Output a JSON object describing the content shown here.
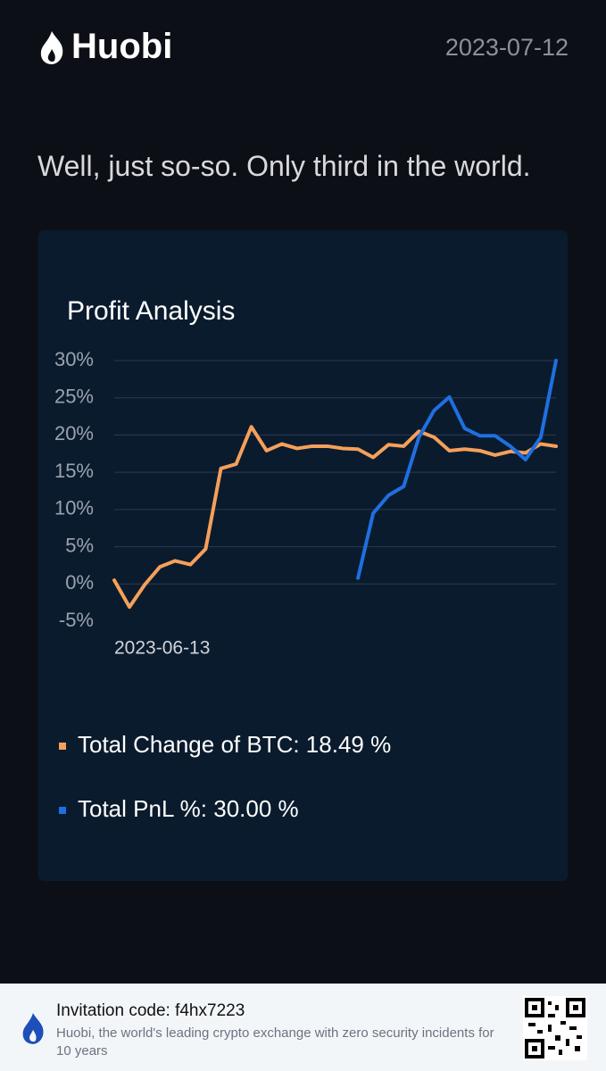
{
  "header": {
    "brand": "Huobi",
    "date": "2023-07-12"
  },
  "tagline": "Well, just so-so. Only third in the world.",
  "chart_data": {
    "type": "line",
    "title": "Profit Analysis",
    "categories": [
      "2023-06-13",
      null,
      null,
      null,
      null,
      null,
      null,
      null,
      null,
      null,
      null,
      null,
      null,
      null,
      null,
      null,
      null,
      null,
      null,
      null,
      null,
      null,
      null,
      null,
      null,
      null,
      null,
      null,
      null,
      null
    ],
    "series": [
      {
        "name": "Total Change of BTC: 18.49 %",
        "color": "#f5a05a",
        "values": [
          0.5,
          -3.1,
          -0.1,
          2.3,
          3.1,
          2.6,
          4.7,
          15.5,
          16.1,
          21.1,
          17.9,
          18.8,
          18.2,
          18.5,
          18.5,
          18.2,
          18.1,
          17.0,
          18.7,
          18.5,
          20.5,
          19.7,
          17.9,
          18.1,
          17.9,
          17.3,
          17.8,
          17.6,
          18.8,
          18.49
        ]
      },
      {
        "name": "Total PnL %: 30.00 %",
        "color": "#1f6fe0",
        "values": [
          null,
          null,
          null,
          null,
          null,
          null,
          null,
          null,
          null,
          null,
          null,
          null,
          null,
          null,
          null,
          null,
          0.8,
          9.5,
          11.9,
          13.1,
          19.7,
          23.3,
          25.1,
          20.9,
          19.9,
          19.9,
          18.5,
          16.7,
          19.7,
          30.0
        ]
      }
    ],
    "ylim": [
      -5,
      30
    ],
    "yticks": [
      {
        "value": -5,
        "label": "-5%"
      },
      {
        "value": 0,
        "label": "0%"
      },
      {
        "value": 5,
        "label": "5%"
      },
      {
        "value": 10,
        "label": "10%"
      },
      {
        "value": 15,
        "label": "15%"
      },
      {
        "value": 20,
        "label": "20%"
      },
      {
        "value": 25,
        "label": "25%"
      },
      {
        "value": 30,
        "label": "30%"
      }
    ],
    "grid": true
  },
  "footer": {
    "invitation": "Invitation code: f4hx7223",
    "description": "Huobi, the world's leading crypto exchange with zero security incidents for 10 years"
  }
}
